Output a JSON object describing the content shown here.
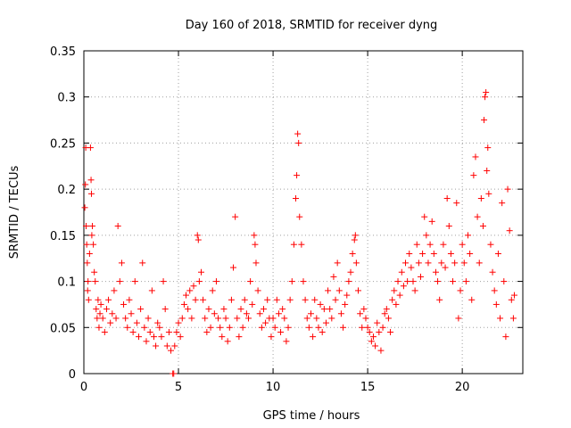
{
  "chart_data": {
    "type": "scatter",
    "title": "Day 160 of 2018, SRMTID for receiver dyng",
    "xlabel": "GPS time / hours",
    "ylabel": "SRMTID / TECUs",
    "xlim": [
      0,
      23.2
    ],
    "ylim": [
      0,
      0.35
    ],
    "x_ticks": [
      0,
      5,
      10,
      15,
      20
    ],
    "x_tick_labels": [
      "0",
      "5",
      "10",
      "15",
      "20"
    ],
    "y_ticks": [
      0,
      0.05,
      0.1,
      0.15,
      0.2,
      0.25,
      0.3,
      0.35
    ],
    "y_tick_labels": [
      "0",
      "0.05",
      "0.1",
      "0.15",
      "0.2",
      "0.25",
      "0.3",
      "0.35"
    ],
    "grid": true,
    "marker": "plus",
    "color": "#ff0000",
    "series": [
      {
        "name": "SRMTID",
        "points": [
          [
            0.05,
            0.18
          ],
          [
            0.08,
            0.205
          ],
          [
            0.1,
            0.245
          ],
          [
            0.12,
            0.16
          ],
          [
            0.15,
            0.14
          ],
          [
            0.18,
            0.12
          ],
          [
            0.2,
            0.09
          ],
          [
            0.22,
            0.1
          ],
          [
            0.25,
            0.08
          ],
          [
            0.3,
            0.13
          ],
          [
            0.35,
            0.245
          ],
          [
            0.38,
            0.21
          ],
          [
            0.4,
            0.195
          ],
          [
            0.42,
            0.15
          ],
          [
            0.45,
            0.16
          ],
          [
            0.5,
            0.14
          ],
          [
            0.55,
            0.11
          ],
          [
            0.6,
            0.1
          ],
          [
            0.65,
            0.07
          ],
          [
            0.7,
            0.06
          ],
          [
            0.75,
            0.08
          ],
          [
            0.8,
            0.05
          ],
          [
            0.85,
            0.065
          ],
          [
            0.9,
            0.075
          ],
          [
            1.0,
            0.06
          ],
          [
            1.1,
            0.045
          ],
          [
            1.2,
            0.07
          ],
          [
            1.3,
            0.08
          ],
          [
            1.4,
            0.055
          ],
          [
            1.5,
            0.065
          ],
          [
            1.6,
            0.09
          ],
          [
            1.7,
            0.06
          ],
          [
            1.8,
            0.16
          ],
          [
            1.9,
            0.1
          ],
          [
            2.0,
            0.12
          ],
          [
            2.1,
            0.075
          ],
          [
            2.2,
            0.06
          ],
          [
            2.3,
            0.05
          ],
          [
            2.4,
            0.08
          ],
          [
            2.5,
            0.065
          ],
          [
            2.6,
            0.045
          ],
          [
            2.7,
            0.1
          ],
          [
            2.8,
            0.055
          ],
          [
            2.9,
            0.04
          ],
          [
            3.0,
            0.07
          ],
          [
            3.1,
            0.12
          ],
          [
            3.2,
            0.05
          ],
          [
            3.3,
            0.035
          ],
          [
            3.4,
            0.06
          ],
          [
            3.5,
            0.045
          ],
          [
            3.6,
            0.09
          ],
          [
            3.7,
            0.04
          ],
          [
            3.8,
            0.03
          ],
          [
            3.9,
            0.055
          ],
          [
            4.0,
            0.05
          ],
          [
            4.1,
            0.04
          ],
          [
            4.2,
            0.1
          ],
          [
            4.3,
            0.07
          ],
          [
            4.4,
            0.03
          ],
          [
            4.5,
            0.045
          ],
          [
            4.6,
            0.025
          ],
          [
            4.7,
            0.0
          ],
          [
            4.75,
            0.0
          ],
          [
            4.8,
            0.03
          ],
          [
            4.9,
            0.045
          ],
          [
            5.0,
            0.055
          ],
          [
            5.1,
            0.04
          ],
          [
            5.2,
            0.06
          ],
          [
            5.3,
            0.075
          ],
          [
            5.4,
            0.085
          ],
          [
            5.5,
            0.07
          ],
          [
            5.6,
            0.09
          ],
          [
            5.7,
            0.06
          ],
          [
            5.8,
            0.095
          ],
          [
            5.9,
            0.08
          ],
          [
            6.0,
            0.15
          ],
          [
            6.05,
            0.145
          ],
          [
            6.1,
            0.1
          ],
          [
            6.2,
            0.11
          ],
          [
            6.3,
            0.08
          ],
          [
            6.4,
            0.06
          ],
          [
            6.5,
            0.045
          ],
          [
            6.6,
            0.07
          ],
          [
            6.7,
            0.05
          ],
          [
            6.8,
            0.09
          ],
          [
            6.9,
            0.065
          ],
          [
            7.0,
            0.1
          ],
          [
            7.1,
            0.06
          ],
          [
            7.2,
            0.05
          ],
          [
            7.3,
            0.04
          ],
          [
            7.4,
            0.07
          ],
          [
            7.5,
            0.06
          ],
          [
            7.6,
            0.035
          ],
          [
            7.7,
            0.05
          ],
          [
            7.8,
            0.08
          ],
          [
            7.9,
            0.115
          ],
          [
            8.0,
            0.17
          ],
          [
            8.1,
            0.06
          ],
          [
            8.2,
            0.04
          ],
          [
            8.3,
            0.07
          ],
          [
            8.4,
            0.05
          ],
          [
            8.5,
            0.08
          ],
          [
            8.6,
            0.065
          ],
          [
            8.7,
            0.06
          ],
          [
            8.8,
            0.1
          ],
          [
            8.9,
            0.075
          ],
          [
            9.0,
            0.15
          ],
          [
            9.05,
            0.14
          ],
          [
            9.1,
            0.12
          ],
          [
            9.2,
            0.09
          ],
          [
            9.3,
            0.065
          ],
          [
            9.4,
            0.05
          ],
          [
            9.5,
            0.07
          ],
          [
            9.6,
            0.055
          ],
          [
            9.7,
            0.08
          ],
          [
            9.8,
            0.06
          ],
          [
            9.9,
            0.04
          ],
          [
            10.0,
            0.06
          ],
          [
            10.1,
            0.05
          ],
          [
            10.2,
            0.08
          ],
          [
            10.3,
            0.065
          ],
          [
            10.4,
            0.045
          ],
          [
            10.5,
            0.07
          ],
          [
            10.6,
            0.06
          ],
          [
            10.7,
            0.035
          ],
          [
            10.8,
            0.05
          ],
          [
            10.9,
            0.08
          ],
          [
            11.0,
            0.1
          ],
          [
            11.1,
            0.14
          ],
          [
            11.2,
            0.19
          ],
          [
            11.25,
            0.215
          ],
          [
            11.3,
            0.26
          ],
          [
            11.35,
            0.25
          ],
          [
            11.4,
            0.17
          ],
          [
            11.5,
            0.14
          ],
          [
            11.6,
            0.1
          ],
          [
            11.7,
            0.08
          ],
          [
            11.8,
            0.06
          ],
          [
            11.9,
            0.05
          ],
          [
            12.0,
            0.065
          ],
          [
            12.1,
            0.04
          ],
          [
            12.2,
            0.08
          ],
          [
            12.3,
            0.06
          ],
          [
            12.4,
            0.05
          ],
          [
            12.5,
            0.075
          ],
          [
            12.6,
            0.045
          ],
          [
            12.7,
            0.07
          ],
          [
            12.8,
            0.055
          ],
          [
            12.9,
            0.09
          ],
          [
            13.0,
            0.07
          ],
          [
            13.1,
            0.06
          ],
          [
            13.2,
            0.105
          ],
          [
            13.3,
            0.08
          ],
          [
            13.4,
            0.12
          ],
          [
            13.5,
            0.09
          ],
          [
            13.6,
            0.065
          ],
          [
            13.7,
            0.05
          ],
          [
            13.8,
            0.075
          ],
          [
            13.9,
            0.085
          ],
          [
            14.0,
            0.1
          ],
          [
            14.1,
            0.11
          ],
          [
            14.2,
            0.13
          ],
          [
            14.3,
            0.145
          ],
          [
            14.35,
            0.15
          ],
          [
            14.4,
            0.12
          ],
          [
            14.5,
            0.09
          ],
          [
            14.6,
            0.065
          ],
          [
            14.7,
            0.05
          ],
          [
            14.8,
            0.07
          ],
          [
            14.9,
            0.06
          ],
          [
            15.0,
            0.05
          ],
          [
            15.1,
            0.045
          ],
          [
            15.2,
            0.035
          ],
          [
            15.3,
            0.04
          ],
          [
            15.4,
            0.03
          ],
          [
            15.5,
            0.055
          ],
          [
            15.6,
            0.045
          ],
          [
            15.7,
            0.025
          ],
          [
            15.8,
            0.05
          ],
          [
            15.9,
            0.065
          ],
          [
            16.0,
            0.07
          ],
          [
            16.1,
            0.06
          ],
          [
            16.2,
            0.045
          ],
          [
            16.3,
            0.08
          ],
          [
            16.4,
            0.09
          ],
          [
            16.5,
            0.075
          ],
          [
            16.6,
            0.1
          ],
          [
            16.7,
            0.085
          ],
          [
            16.8,
            0.11
          ],
          [
            16.9,
            0.095
          ],
          [
            17.0,
            0.12
          ],
          [
            17.1,
            0.1
          ],
          [
            17.2,
            0.13
          ],
          [
            17.3,
            0.115
          ],
          [
            17.4,
            0.1
          ],
          [
            17.5,
            0.09
          ],
          [
            17.6,
            0.14
          ],
          [
            17.7,
            0.12
          ],
          [
            17.8,
            0.105
          ],
          [
            17.9,
            0.13
          ],
          [
            18.0,
            0.17
          ],
          [
            18.1,
            0.15
          ],
          [
            18.2,
            0.12
          ],
          [
            18.3,
            0.14
          ],
          [
            18.4,
            0.165
          ],
          [
            18.5,
            0.13
          ],
          [
            18.6,
            0.11
          ],
          [
            18.7,
            0.1
          ],
          [
            18.8,
            0.08
          ],
          [
            18.9,
            0.12
          ],
          [
            19.0,
            0.14
          ],
          [
            19.1,
            0.115
          ],
          [
            19.2,
            0.19
          ],
          [
            19.3,
            0.16
          ],
          [
            19.4,
            0.13
          ],
          [
            19.5,
            0.1
          ],
          [
            19.6,
            0.12
          ],
          [
            19.7,
            0.185
          ],
          [
            19.8,
            0.06
          ],
          [
            19.9,
            0.09
          ],
          [
            20.0,
            0.14
          ],
          [
            20.1,
            0.12
          ],
          [
            20.2,
            0.1
          ],
          [
            20.3,
            0.15
          ],
          [
            20.4,
            0.13
          ],
          [
            20.5,
            0.08
          ],
          [
            20.6,
            0.215
          ],
          [
            20.7,
            0.235
          ],
          [
            20.8,
            0.17
          ],
          [
            20.9,
            0.12
          ],
          [
            21.0,
            0.19
          ],
          [
            21.1,
            0.16
          ],
          [
            21.15,
            0.275
          ],
          [
            21.2,
            0.3
          ],
          [
            21.25,
            0.305
          ],
          [
            21.3,
            0.22
          ],
          [
            21.35,
            0.245
          ],
          [
            21.4,
            0.195
          ],
          [
            21.5,
            0.14
          ],
          [
            21.6,
            0.11
          ],
          [
            21.7,
            0.09
          ],
          [
            21.8,
            0.075
          ],
          [
            21.9,
            0.13
          ],
          [
            22.0,
            0.06
          ],
          [
            22.1,
            0.185
          ],
          [
            22.2,
            0.1
          ],
          [
            22.3,
            0.04
          ],
          [
            22.4,
            0.2
          ],
          [
            22.5,
            0.155
          ],
          [
            22.6,
            0.08
          ],
          [
            22.7,
            0.06
          ],
          [
            22.75,
            0.085
          ]
        ]
      }
    ]
  }
}
